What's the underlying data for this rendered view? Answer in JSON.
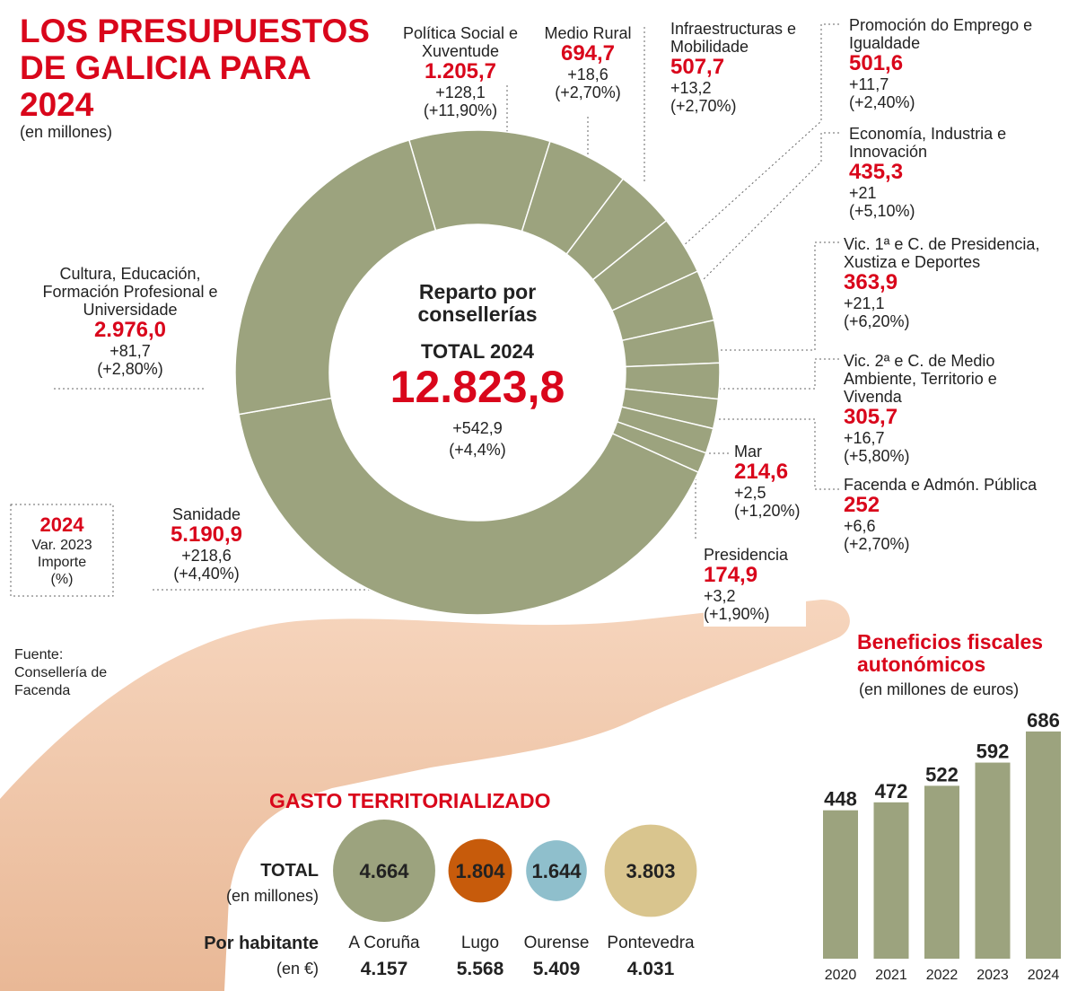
{
  "header": {
    "title": "LOS PRESUPUESTOS DE GALICIA PARA 2024",
    "subtitle": "(en millones)",
    "source": "Fuente: Consellería de Facenda"
  },
  "legend_box": {
    "year": "2024",
    "lines": [
      "Var. 2023",
      "Importe",
      "(%)"
    ]
  },
  "chart_data": [
    {
      "type": "donut",
      "color": "#9ca37e",
      "center_title": "Reparto por consellerías",
      "total_title": "TOTAL 2024",
      "total_value": 12823.8,
      "total_value_label": "12.823,8",
      "total_change": "+542,9",
      "total_change_pct": "(+4,4%)",
      "categories": [
        "Política Social e Xuventude",
        "Medio Rural",
        "Infraestructuras e Mobilidade",
        "Promoción do Emprego e Igualdade",
        "Economía, Industria e Innovación",
        "Vic. 1ª e C. de Presidencia, Xustiza e Deportes",
        "Vic. 2ª e C. de Medio Ambiente, Territorio e Vivenda",
        "Facenda e Admón. Pública",
        "Mar",
        "Presidencia",
        "Sanidade",
        "Cultura, Educación, Formación Profesional e Universidade"
      ],
      "values": [
        1205.7,
        694.7,
        507.7,
        501.6,
        435.3,
        363.9,
        305.7,
        252,
        214.6,
        174.9,
        5190.9,
        2976.0
      ],
      "value_labels": [
        "1.205,7",
        "694,7",
        "507,7",
        "501,6",
        "435,3",
        "363,9",
        "305,7",
        "252",
        "214,6",
        "174,9",
        "5.190,9",
        "2.976,0"
      ],
      "change_labels": [
        "+128,1",
        "+18,6",
        "+13,2",
        "+11,7",
        "+21",
        "+21,1",
        "+16,7",
        "+6,6",
        "+2,5",
        "+3,2",
        "+218,6",
        "+81,7"
      ],
      "change_pct_labels": [
        "(+11,90%)",
        "(+2,70%)",
        "(+2,70%)",
        "(+2,40%)",
        "(+5,10%)",
        "(+6,20%)",
        "(+5,80%)",
        "(+2,70%)",
        "(+1,20%)",
        "(+1,90%)",
        "(+4,40%)",
        "(+2,80%)"
      ]
    },
    {
      "type": "bubble",
      "title": "GASTO TERRITORIALIZADO",
      "row_labels": [
        "TOTAL",
        "(en millones)",
        "Por habitante",
        "(en €)"
      ],
      "categories": [
        "A Coruña",
        "Lugo",
        "Ourense",
        "Pontevedra"
      ],
      "values": [
        4664,
        1804,
        1644,
        3803
      ],
      "value_labels": [
        "4.664",
        "1.804",
        "1.644",
        "3.803"
      ],
      "colors": [
        "#9ca37e",
        "#c75b0b",
        "#8fbfcc",
        "#d9c58e"
      ],
      "per_capita_labels": [
        "4.157",
        "5.568",
        "5.409",
        "4.031"
      ]
    },
    {
      "type": "bar",
      "title": "Beneficios fiscales autonómicos",
      "subtitle": "(en millones de euros)",
      "categories": [
        "2020",
        "2021",
        "2022",
        "2023",
        "2024"
      ],
      "values": [
        448,
        472,
        522,
        592,
        686
      ],
      "color": "#9ca37e"
    }
  ]
}
